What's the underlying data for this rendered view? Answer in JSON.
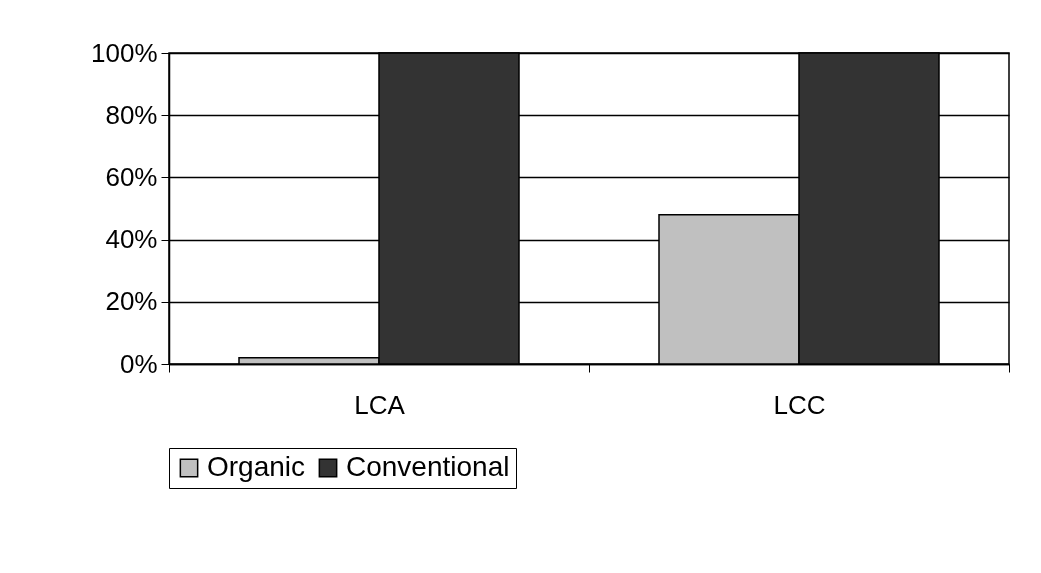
{
  "chart_data": {
    "type": "bar",
    "categories": [
      "LCA",
      "LCC"
    ],
    "series": [
      {
        "name": "Organic",
        "color": "#c0c0c0",
        "values": [
          2,
          48
        ]
      },
      {
        "name": "Conventional",
        "color": "#333333",
        "values": [
          100,
          100
        ]
      }
    ],
    "ylim": [
      0,
      100
    ],
    "yticks": [
      {
        "value": 0,
        "label": "0%"
      },
      {
        "value": 20,
        "label": "20%"
      },
      {
        "value": 40,
        "label": "40%"
      },
      {
        "value": 60,
        "label": "60%"
      },
      {
        "value": 80,
        "label": "80%"
      },
      {
        "value": 100,
        "label": "100%"
      }
    ],
    "grid": "y",
    "legend": "bottom"
  }
}
